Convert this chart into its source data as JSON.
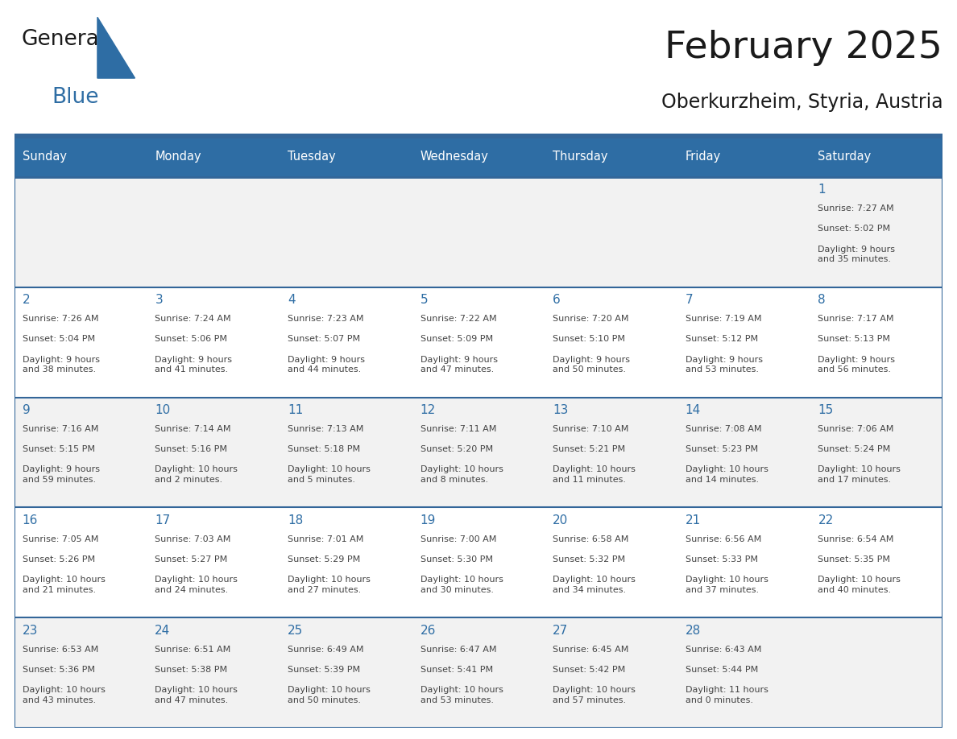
{
  "title": "February 2025",
  "subtitle": "Oberkurzheim, Styria, Austria",
  "days_of_week": [
    "Sunday",
    "Monday",
    "Tuesday",
    "Wednesday",
    "Thursday",
    "Friday",
    "Saturday"
  ],
  "header_bg": "#2E6DA4",
  "header_text": "#FFFFFF",
  "cell_bg_odd": "#F2F2F2",
  "cell_bg_even": "#FFFFFF",
  "border_color": "#336699",
  "day_num_color": "#2E6DA4",
  "text_color": "#444444",
  "title_color": "#1a1a1a",
  "calendar_data": [
    [
      null,
      null,
      null,
      null,
      null,
      null,
      {
        "day": "1",
        "sunrise": "7:27 AM",
        "sunset": "5:02 PM",
        "daylight": "9 hours\nand 35 minutes."
      }
    ],
    [
      {
        "day": "2",
        "sunrise": "7:26 AM",
        "sunset": "5:04 PM",
        "daylight": "9 hours\nand 38 minutes."
      },
      {
        "day": "3",
        "sunrise": "7:24 AM",
        "sunset": "5:06 PM",
        "daylight": "9 hours\nand 41 minutes."
      },
      {
        "day": "4",
        "sunrise": "7:23 AM",
        "sunset": "5:07 PM",
        "daylight": "9 hours\nand 44 minutes."
      },
      {
        "day": "5",
        "sunrise": "7:22 AM",
        "sunset": "5:09 PM",
        "daylight": "9 hours\nand 47 minutes."
      },
      {
        "day": "6",
        "sunrise": "7:20 AM",
        "sunset": "5:10 PM",
        "daylight": "9 hours\nand 50 minutes."
      },
      {
        "day": "7",
        "sunrise": "7:19 AM",
        "sunset": "5:12 PM",
        "daylight": "9 hours\nand 53 minutes."
      },
      {
        "day": "8",
        "sunrise": "7:17 AM",
        "sunset": "5:13 PM",
        "daylight": "9 hours\nand 56 minutes."
      }
    ],
    [
      {
        "day": "9",
        "sunrise": "7:16 AM",
        "sunset": "5:15 PM",
        "daylight": "9 hours\nand 59 minutes."
      },
      {
        "day": "10",
        "sunrise": "7:14 AM",
        "sunset": "5:16 PM",
        "daylight": "10 hours\nand 2 minutes."
      },
      {
        "day": "11",
        "sunrise": "7:13 AM",
        "sunset": "5:18 PM",
        "daylight": "10 hours\nand 5 minutes."
      },
      {
        "day": "12",
        "sunrise": "7:11 AM",
        "sunset": "5:20 PM",
        "daylight": "10 hours\nand 8 minutes."
      },
      {
        "day": "13",
        "sunrise": "7:10 AM",
        "sunset": "5:21 PM",
        "daylight": "10 hours\nand 11 minutes."
      },
      {
        "day": "14",
        "sunrise": "7:08 AM",
        "sunset": "5:23 PM",
        "daylight": "10 hours\nand 14 minutes."
      },
      {
        "day": "15",
        "sunrise": "7:06 AM",
        "sunset": "5:24 PM",
        "daylight": "10 hours\nand 17 minutes."
      }
    ],
    [
      {
        "day": "16",
        "sunrise": "7:05 AM",
        "sunset": "5:26 PM",
        "daylight": "10 hours\nand 21 minutes."
      },
      {
        "day": "17",
        "sunrise": "7:03 AM",
        "sunset": "5:27 PM",
        "daylight": "10 hours\nand 24 minutes."
      },
      {
        "day": "18",
        "sunrise": "7:01 AM",
        "sunset": "5:29 PM",
        "daylight": "10 hours\nand 27 minutes."
      },
      {
        "day": "19",
        "sunrise": "7:00 AM",
        "sunset": "5:30 PM",
        "daylight": "10 hours\nand 30 minutes."
      },
      {
        "day": "20",
        "sunrise": "6:58 AM",
        "sunset": "5:32 PM",
        "daylight": "10 hours\nand 34 minutes."
      },
      {
        "day": "21",
        "sunrise": "6:56 AM",
        "sunset": "5:33 PM",
        "daylight": "10 hours\nand 37 minutes."
      },
      {
        "day": "22",
        "sunrise": "6:54 AM",
        "sunset": "5:35 PM",
        "daylight": "10 hours\nand 40 minutes."
      }
    ],
    [
      {
        "day": "23",
        "sunrise": "6:53 AM",
        "sunset": "5:36 PM",
        "daylight": "10 hours\nand 43 minutes."
      },
      {
        "day": "24",
        "sunrise": "6:51 AM",
        "sunset": "5:38 PM",
        "daylight": "10 hours\nand 47 minutes."
      },
      {
        "day": "25",
        "sunrise": "6:49 AM",
        "sunset": "5:39 PM",
        "daylight": "10 hours\nand 50 minutes."
      },
      {
        "day": "26",
        "sunrise": "6:47 AM",
        "sunset": "5:41 PM",
        "daylight": "10 hours\nand 53 minutes."
      },
      {
        "day": "27",
        "sunrise": "6:45 AM",
        "sunset": "5:42 PM",
        "daylight": "10 hours\nand 57 minutes."
      },
      {
        "day": "28",
        "sunrise": "6:43 AM",
        "sunset": "5:44 PM",
        "daylight": "11 hours\nand 0 minutes."
      },
      null
    ]
  ]
}
